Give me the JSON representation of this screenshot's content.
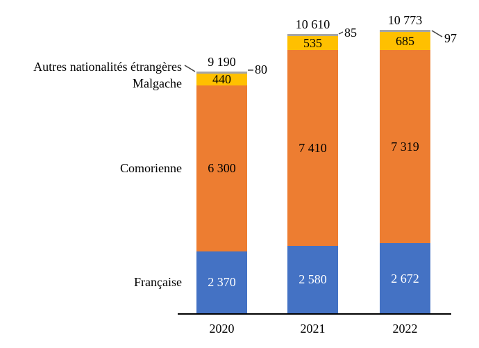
{
  "chart_data": {
    "type": "bar",
    "stacked": true,
    "grid": false,
    "categories": [
      "2020",
      "2021",
      "2022"
    ],
    "series": [
      {
        "name": "Française",
        "color": "#4472C4",
        "label_color": "#FFFFFF",
        "values": [
          2370,
          2580,
          2672
        ],
        "labels": [
          "2 370",
          "2 580",
          "2 672"
        ],
        "labels_outside": false
      },
      {
        "name": "Comorienne",
        "color": "#ED7D31",
        "label_color": "#000000",
        "values": [
          6300,
          7410,
          7319
        ],
        "labels": [
          "6 300",
          "7 410",
          "7 319"
        ],
        "labels_outside": false
      },
      {
        "name": "Malgache",
        "color": "#FFC000",
        "label_color": "#000000",
        "values": [
          440,
          535,
          685
        ],
        "labels": [
          "440",
          "535",
          "685"
        ],
        "labels_outside": false
      },
      {
        "name": "Autres nationalités étrangères",
        "color": "#A5A5A5",
        "label_color": "#000000",
        "values": [
          80,
          85,
          97
        ],
        "labels": [
          "80",
          "85",
          "97"
        ],
        "labels_outside": true
      }
    ],
    "totals": {
      "values": [
        9190,
        10610,
        10773
      ],
      "labels": [
        "9 190",
        "10 610",
        "10 773"
      ]
    },
    "ylim": [
      0,
      10773
    ],
    "legend_position": "left-of-first-bar-category-labels",
    "axis_color": "#000000",
    "leader_line_color": "#404040"
  }
}
